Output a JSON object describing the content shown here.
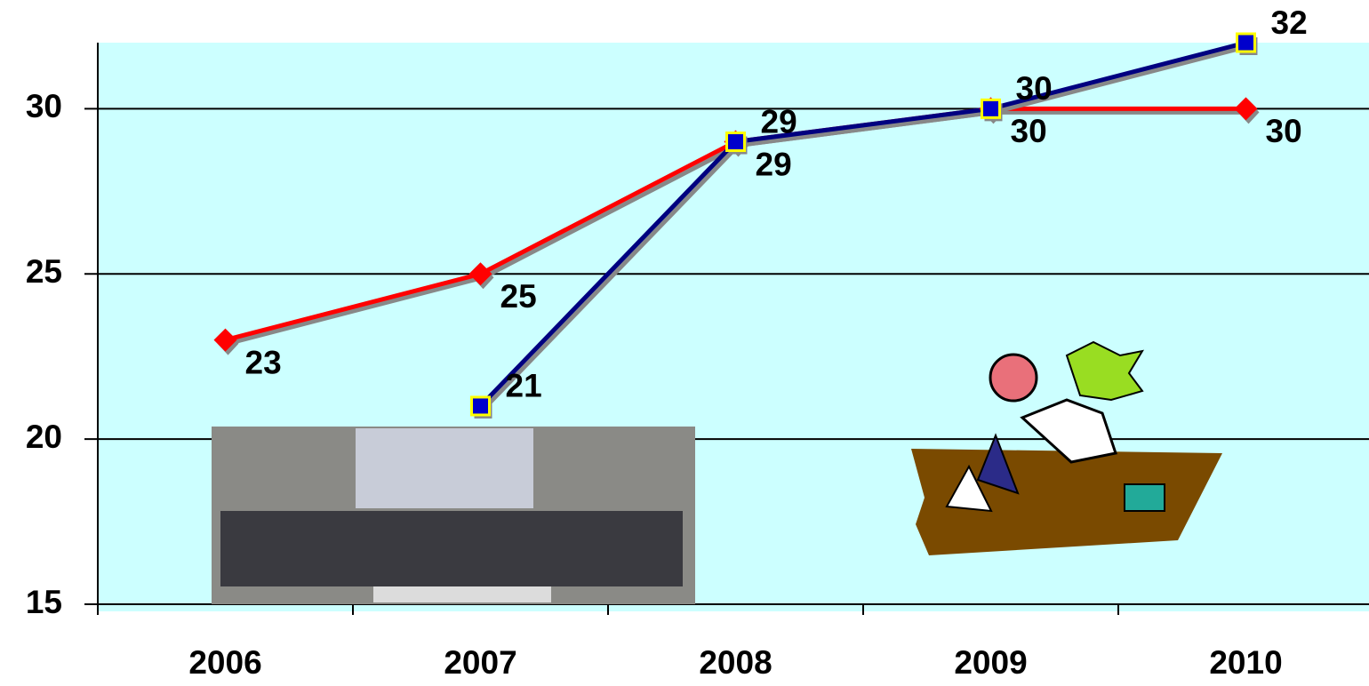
{
  "chart_data": {
    "type": "line",
    "categories": [
      "2006",
      "2007",
      "2008",
      "2009",
      "2010"
    ],
    "series": [
      {
        "color": "#ff0000",
        "marker": "diamond",
        "values": [
          23,
          25,
          29,
          30,
          30
        ]
      },
      {
        "color": "#000080",
        "marker": "square",
        "values": [
          null,
          21,
          29,
          30,
          32
        ]
      }
    ],
    "ylim": [
      15,
      32
    ],
    "yticks": [
      15,
      20,
      25,
      30
    ],
    "grid": true,
    "data_labels": true
  }
}
